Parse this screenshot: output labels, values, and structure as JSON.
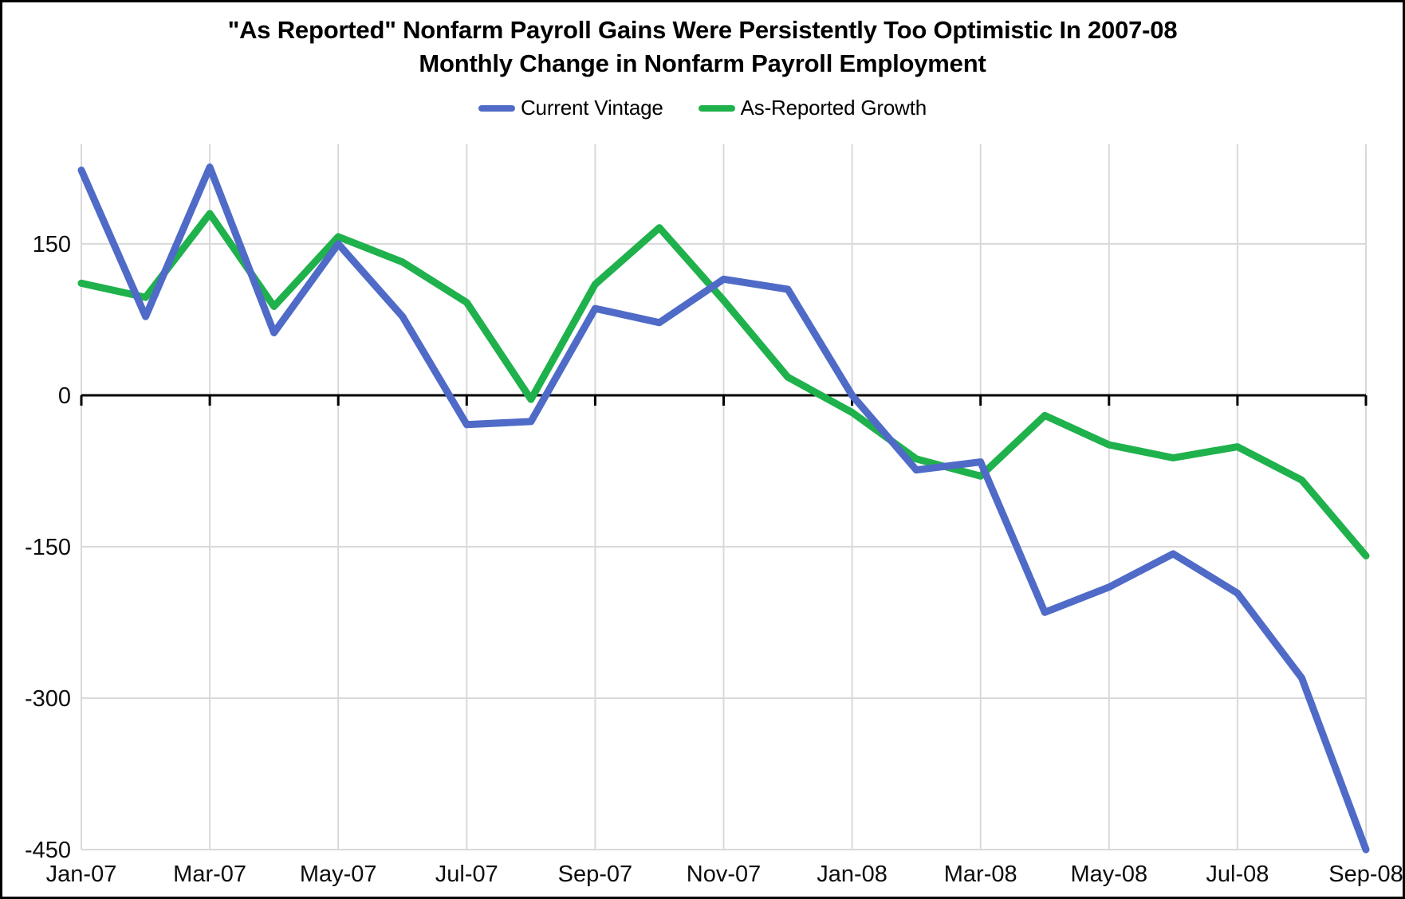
{
  "title": "\"As Reported\" Nonfarm Payroll Gains Were Persistently Too Optimistic In 2007-08",
  "subtitle": "Monthly Change in Nonfarm Payroll Employment",
  "legend": [
    {
      "label": "Current Vintage",
      "color": "#4F6BC7"
    },
    {
      "label": "As-Reported Growth",
      "color": "#1FB14C"
    }
  ],
  "chart_data": {
    "type": "line",
    "title": "\"As Reported\" Nonfarm Payroll Gains Were Persistently Too Optimistic In 2007-08",
    "subtitle": "Monthly Change in Nonfarm Payroll Employment",
    "x": [
      "Jan-07",
      "Feb-07",
      "Mar-07",
      "Apr-07",
      "May-07",
      "Jun-07",
      "Jul-07",
      "Aug-07",
      "Sep-07",
      "Oct-07",
      "Nov-07",
      "Dec-07",
      "Jan-08",
      "Feb-08",
      "Mar-08",
      "Apr-08",
      "May-08",
      "Jun-08",
      "Jul-08",
      "Aug-08",
      "Sep-08"
    ],
    "series": [
      {
        "name": "Current Vintage",
        "color": "#4F6BC7",
        "values": [
          223,
          78,
          226,
          62,
          150,
          78,
          -29,
          -26,
          86,
          72,
          115,
          105,
          0,
          -74,
          -66,
          -215,
          -190,
          -157,
          -196,
          -280,
          -450
        ]
      },
      {
        "name": "As-Reported Growth",
        "color": "#1FB14C",
        "values": [
          111,
          97,
          180,
          88,
          157,
          132,
          92,
          -4,
          110,
          166,
          94,
          18,
          -17,
          -63,
          -80,
          -20,
          -49,
          -62,
          -51,
          -84,
          -159
        ]
      }
    ],
    "x_tick_labels": [
      "Jan-07",
      "Mar-07",
      "May-07",
      "Jul-07",
      "Sep-07",
      "Nov-07",
      "Jan-08",
      "Mar-08",
      "May-08",
      "Jul-08",
      "Sep-08"
    ],
    "y_ticks": [
      150,
      0,
      -150,
      -300,
      -450
    ],
    "ylim": [
      -450,
      250
    ],
    "grid": {
      "color": "#D9D9D9",
      "horizontal_at": [
        150,
        -150,
        -300,
        -450
      ]
    },
    "axis_color": "#000000",
    "legend_position": "top-center",
    "xlabel": "",
    "ylabel": ""
  }
}
